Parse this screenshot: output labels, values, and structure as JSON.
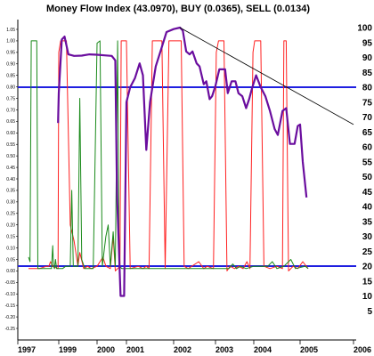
{
  "chart_data": {
    "type": "line",
    "title": "Money Flow Index (43.0970), BUY (0.0365), SELL (0.0134)",
    "grid": false,
    "legend": "none",
    "left_axis": {
      "ylim": [
        -0.25,
        1.05
      ],
      "ticks": [
        "1.05",
        "1.00",
        "0.95",
        "0.90",
        "0.85",
        "0.80",
        "0.75",
        "0.70",
        "0.65",
        "0.60",
        "0.55",
        "0.50",
        "0.45",
        "0.40",
        "0.35",
        "0.30",
        "0.25",
        "0.20",
        "0.15",
        "0.10",
        "0.05",
        "0.00",
        "-0.05",
        "-0.10",
        "-0.15",
        "-0.20",
        "-0.25"
      ]
    },
    "right_axis": {
      "ylim": [
        0,
        100
      ],
      "ticks": [
        "100",
        "95",
        "90",
        "85",
        "80",
        "75",
        "70",
        "65",
        "60",
        "55",
        "50",
        "45",
        "40",
        "35",
        "30",
        "25",
        "20",
        "15",
        "10",
        "5"
      ]
    },
    "x_axis": {
      "xlim": [
        1997.0,
        2006.0
      ],
      "ticks": [
        "1997",
        "1999",
        "2000",
        "2001",
        "2002",
        "2003",
        "2004",
        "2005",
        "2006"
      ]
    },
    "horizontal_lines": [
      {
        "value": 80,
        "color": "#1f1fe0"
      },
      {
        "value": 20,
        "color": "#1f1fe0"
      }
    ],
    "trendline": {
      "from": [
        2002.15,
        100
      ],
      "to": [
        2006.0,
        67.5
      ],
      "color": "#000000"
    },
    "series": [
      {
        "color": "#6a0d9e",
        "axis": "right",
        "points": [
          [
            1998.95,
            68
          ],
          [
            1999.0,
            78
          ],
          [
            1999.08,
            96
          ],
          [
            1999.15,
            97
          ],
          [
            1999.25,
            91
          ],
          [
            1999.4,
            90.5
          ],
          [
            1999.6,
            90.6
          ],
          [
            1999.8,
            91
          ],
          [
            2000.0,
            90.9
          ],
          [
            2000.25,
            90.7
          ],
          [
            2000.5,
            90.5
          ],
          [
            2000.62,
            89
          ],
          [
            2000.68,
            44
          ],
          [
            2000.8,
            10
          ],
          [
            2000.92,
            10
          ],
          [
            2001.0,
            75
          ],
          [
            2001.08,
            80
          ],
          [
            2001.18,
            83
          ],
          [
            2001.28,
            88
          ],
          [
            2001.35,
            84
          ],
          [
            2001.42,
            59
          ],
          [
            2001.5,
            75
          ],
          [
            2001.62,
            87
          ],
          [
            2001.72,
            92
          ],
          [
            2001.85,
            98.5
          ],
          [
            2002.0,
            99.5
          ],
          [
            2002.15,
            100
          ],
          [
            2002.22,
            99
          ],
          [
            2002.3,
            92
          ],
          [
            2002.38,
            91
          ],
          [
            2002.45,
            92
          ],
          [
            2002.55,
            88
          ],
          [
            2002.62,
            87
          ],
          [
            2002.72,
            81
          ],
          [
            2002.78,
            82
          ],
          [
            2002.86,
            76
          ],
          [
            2002.92,
            77
          ],
          [
            2003.0,
            80.5
          ],
          [
            2003.1,
            86
          ],
          [
            2003.25,
            86
          ],
          [
            2003.32,
            78
          ],
          [
            2003.42,
            82
          ],
          [
            2003.52,
            82
          ],
          [
            2003.6,
            78
          ],
          [
            2003.7,
            77
          ],
          [
            2003.8,
            73
          ],
          [
            2003.88,
            76
          ],
          [
            2003.95,
            79.5
          ],
          [
            2004.05,
            84
          ],
          [
            2004.15,
            80
          ],
          [
            2004.25,
            77
          ],
          [
            2004.35,
            72
          ],
          [
            2004.45,
            66
          ],
          [
            2004.52,
            64
          ],
          [
            2004.62,
            72
          ],
          [
            2004.7,
            73
          ],
          [
            2004.78,
            61
          ],
          [
            2004.88,
            61
          ],
          [
            2004.95,
            67
          ],
          [
            2005.0,
            67.5
          ],
          [
            2005.05,
            55
          ],
          [
            2005.12,
            43
          ]
        ]
      },
      {
        "color": "#ff2020",
        "axis": "left",
        "points": [
          [
            1997.0,
            0.01
          ],
          [
            1997.7,
            0.01
          ],
          [
            1998.2,
            0.02
          ],
          [
            1998.35,
            0.02
          ],
          [
            1998.45,
            0.04
          ],
          [
            1998.6,
            0.02
          ],
          [
            1998.95,
            0.01
          ],
          [
            1999.0,
            0.95
          ],
          [
            1999.05,
            1.0
          ],
          [
            1999.2,
            1.0
          ],
          [
            1999.3,
            0.2
          ],
          [
            1999.4,
            0.13
          ],
          [
            1999.5,
            0.02
          ],
          [
            1999.55,
            0.08
          ],
          [
            1999.65,
            0.01
          ],
          [
            1999.75,
            0.02
          ],
          [
            1999.85,
            0.01
          ],
          [
            2000.0,
            0.02
          ],
          [
            2000.2,
            0.06
          ],
          [
            2000.3,
            0.02
          ],
          [
            2000.45,
            0.01
          ],
          [
            2000.55,
            0.15
          ],
          [
            2000.62,
            0.0
          ],
          [
            2000.78,
            0.02
          ],
          [
            2000.82,
            1.0
          ],
          [
            2001.0,
            1.0
          ],
          [
            2001.08,
            0.01
          ],
          [
            2001.25,
            0.02
          ],
          [
            2001.35,
            0.01
          ],
          [
            2001.42,
            0.02
          ],
          [
            2001.48,
            0.01
          ],
          [
            2001.55,
            1.0
          ],
          [
            2001.75,
            1.0
          ],
          [
            2001.82,
            0.01
          ],
          [
            2001.9,
            1.0
          ],
          [
            2002.18,
            1.0
          ],
          [
            2002.25,
            0.02
          ],
          [
            2002.35,
            0.01
          ],
          [
            2002.6,
            0.04
          ],
          [
            2002.72,
            0.01
          ],
          [
            2002.8,
            0.02
          ],
          [
            2002.95,
            0.01
          ],
          [
            2003.02,
            0.95
          ],
          [
            2003.08,
            1.0
          ],
          [
            2003.22,
            1.0
          ],
          [
            2003.3,
            0.0
          ],
          [
            2003.38,
            0.02
          ],
          [
            2003.5,
            0.01
          ],
          [
            2003.6,
            0.02
          ],
          [
            2003.72,
            0.01
          ],
          [
            2003.82,
            0.04
          ],
          [
            2003.9,
            0.01
          ],
          [
            2003.98,
            0.95
          ],
          [
            2004.02,
            1.0
          ],
          [
            2004.15,
            1.0
          ],
          [
            2004.22,
            0.02
          ],
          [
            2004.35,
            0.01
          ],
          [
            2004.5,
            0.02
          ],
          [
            2004.62,
            0.01
          ],
          [
            2004.65,
            1.0
          ],
          [
            2004.7,
            1.0
          ],
          [
            2004.75,
            0.0
          ],
          [
            2004.85,
            0.02
          ],
          [
            2004.95,
            0.01
          ],
          [
            2005.05,
            0.04
          ],
          [
            2005.15,
            0.01
          ]
        ]
      },
      {
        "color": "#1a8a1a",
        "axis": "left",
        "points": [
          [
            1997.0,
            0.06
          ],
          [
            1997.1,
            0.04
          ],
          [
            1997.18,
            1.0
          ],
          [
            1997.55,
            1.0
          ],
          [
            1997.62,
            0.01
          ],
          [
            1998.0,
            0.01
          ],
          [
            1998.4,
            0.01
          ],
          [
            1998.52,
            0.01
          ],
          [
            1998.6,
            0.11
          ],
          [
            1998.65,
            0.02
          ],
          [
            1998.72,
            0.01
          ],
          [
            1998.78,
            0.05
          ],
          [
            1998.86,
            0.01
          ],
          [
            1999.1,
            0.01
          ],
          [
            1999.18,
            0.02
          ],
          [
            1999.3,
            0.02
          ],
          [
            1999.34,
            0.35
          ],
          [
            1999.38,
            0.02
          ],
          [
            1999.5,
            0.02
          ],
          [
            1999.55,
            0.75
          ],
          [
            1999.6,
            0.05
          ],
          [
            1999.68,
            0.01
          ],
          [
            1999.9,
            0.01
          ],
          [
            2000.0,
            0.99
          ],
          [
            2000.1,
            1.0
          ],
          [
            2000.18,
            0.02
          ],
          [
            2000.3,
            0.15
          ],
          [
            2000.38,
            0.2
          ],
          [
            2000.45,
            0.02
          ],
          [
            2000.55,
            0.17
          ],
          [
            2000.62,
            0.02
          ],
          [
            2000.7,
            1.0
          ],
          [
            2000.75,
            0.02
          ],
          [
            2000.85,
            0.01
          ],
          [
            2001.0,
            0.01
          ],
          [
            2001.5,
            0.01
          ],
          [
            2002.0,
            0.01
          ],
          [
            2002.5,
            0.01
          ],
          [
            2003.0,
            0.01
          ],
          [
            2003.35,
            0.01
          ],
          [
            2003.45,
            0.03
          ],
          [
            2003.55,
            0.01
          ],
          [
            2003.65,
            0.02
          ],
          [
            2003.8,
            0.01
          ],
          [
            2004.0,
            0.02
          ],
          [
            2004.3,
            0.02
          ],
          [
            2004.4,
            0.04
          ],
          [
            2004.5,
            0.01
          ],
          [
            2004.65,
            0.02
          ],
          [
            2004.8,
            0.05
          ],
          [
            2004.9,
            0.01
          ],
          [
            2005.1,
            0.02
          ],
          [
            2005.15,
            0.01
          ]
        ]
      }
    ]
  }
}
